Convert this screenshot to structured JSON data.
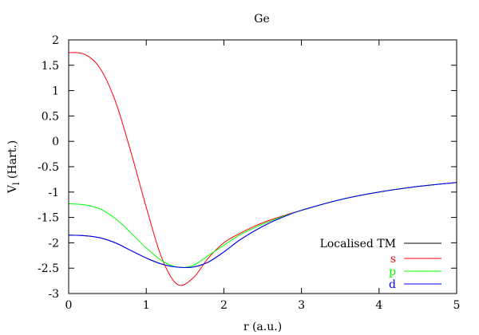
{
  "chart_data": {
    "type": "line",
    "title": "Ge",
    "xlabel": "r (a.u.)",
    "ylabel_main": "V",
    "ylabel_sub": "l",
    "ylabel_rest": " (Hart.)",
    "xlim": [
      0,
      5
    ],
    "ylim": [
      -3,
      2
    ],
    "xticks": [
      0,
      1,
      2,
      3,
      4,
      5
    ],
    "xtick_labels": [
      "0",
      "1",
      "2",
      "3",
      "4",
      "5"
    ],
    "yticks": [
      2,
      1.5,
      1,
      0.5,
      0,
      -0.5,
      -1,
      -1.5,
      -2,
      -2.5,
      -3
    ],
    "ytick_labels": [
      "2",
      "1.5",
      "1",
      "0.5",
      "0",
      "-0.5",
      "-1",
      "-1.5",
      "-2",
      "-2.5",
      "-3"
    ],
    "legend_position": "bottom-right",
    "x": [
      0,
      0.2,
      0.4,
      0.6,
      0.8,
      1.0,
      1.2,
      1.4,
      1.6,
      1.8,
      2.0,
      2.2,
      2.4,
      2.6,
      2.8,
      3.0,
      3.5,
      4.0,
      4.5,
      5.0
    ],
    "series": [
      {
        "name": "Localised TM",
        "color": "#000000",
        "values": [
          -1.85,
          -1.86,
          -1.9,
          -2.0,
          -2.15,
          -2.3,
          -2.42,
          -2.48,
          -2.48,
          -2.38,
          -2.18,
          -1.95,
          -1.76,
          -1.6,
          -1.47,
          -1.36,
          -1.15,
          -1.0,
          -0.89,
          -0.81
        ]
      },
      {
        "name": "s",
        "color": "#ff0000",
        "values": [
          1.75,
          1.72,
          1.45,
          0.8,
          -0.2,
          -1.3,
          -2.3,
          -2.82,
          -2.7,
          -2.3,
          -2.0,
          -1.82,
          -1.67,
          -1.55,
          -1.45,
          -1.36,
          -1.15,
          -1.0,
          -0.89,
          -0.81
        ]
      },
      {
        "name": "p",
        "color": "#00ff00",
        "values": [
          -1.23,
          -1.25,
          -1.33,
          -1.52,
          -1.8,
          -2.1,
          -2.35,
          -2.48,
          -2.45,
          -2.25,
          -2.05,
          -1.85,
          -1.7,
          -1.57,
          -1.46,
          -1.36,
          -1.15,
          -1.0,
          -0.89,
          -0.81
        ]
      },
      {
        "name": "d",
        "color": "#0000ff",
        "values": [
          -1.85,
          -1.86,
          -1.9,
          -2.0,
          -2.15,
          -2.3,
          -2.42,
          -2.48,
          -2.48,
          -2.38,
          -2.18,
          -1.95,
          -1.76,
          -1.6,
          -1.47,
          -1.36,
          -1.15,
          -1.0,
          -0.89,
          -0.81
        ]
      }
    ]
  }
}
